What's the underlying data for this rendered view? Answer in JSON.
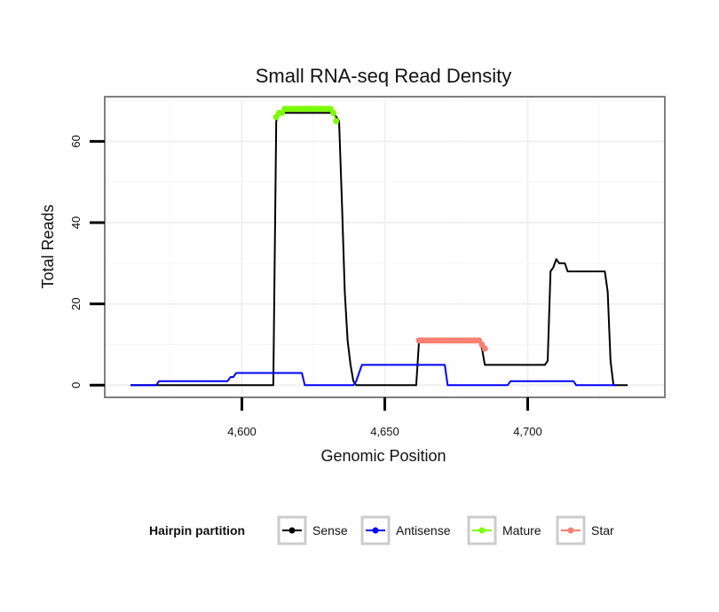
{
  "chart_data": {
    "type": "line",
    "title": "Small RNA-seq Read Density",
    "xlabel": "Genomic Position",
    "ylabel": "Total Reads",
    "xlim": [
      4552,
      4748
    ],
    "ylim": [
      -3,
      71
    ],
    "x_ticks": [
      4600,
      4650,
      4700
    ],
    "x_tick_labels": [
      "4,600",
      "4,650",
      "4,700"
    ],
    "y_ticks": [
      0,
      20,
      40,
      60
    ],
    "y_tick_labels": [
      "0",
      "20",
      "40",
      "60"
    ],
    "grid": true,
    "legend": {
      "title": "Hairpin partition",
      "position": "bottom",
      "entries": [
        {
          "label": "Sense",
          "color": "#000000"
        },
        {
          "label": "Antisense",
          "color": "#0000ff"
        },
        {
          "label": "Mature",
          "color": "#7cfc00"
        },
        {
          "label": "Star",
          "color": "#fa8072"
        }
      ]
    },
    "series": [
      {
        "name": "Sense",
        "color": "#000000",
        "style": "line",
        "x": [
          4561,
          4611,
          4612,
          4613,
          4632,
          4634,
          4635,
          4636,
          4637,
          4638,
          4639,
          4640,
          4661,
          4662,
          4683,
          4684,
          4685,
          4706,
          4707,
          4708,
          4709,
          4710,
          4711,
          4712,
          4713,
          4714,
          4727,
          4728,
          4729,
          4730,
          4735
        ],
        "y": [
          0,
          0,
          65,
          67,
          67,
          65,
          45,
          23,
          11,
          5,
          1,
          0,
          0,
          11,
          11,
          9,
          5,
          5,
          6,
          28,
          29,
          31,
          30,
          30,
          30,
          28,
          28,
          23,
          6,
          0,
          0
        ]
      },
      {
        "name": "Antisense",
        "color": "#0000ff",
        "style": "line",
        "x": [
          4561,
          4570,
          4571,
          4595,
          4596,
          4597,
          4598,
          4621,
          4622,
          4638,
          4639,
          4640,
          4641,
          4642,
          4671,
          4672,
          4693,
          4694,
          4716,
          4717,
          4731
        ],
        "y": [
          0,
          0,
          1,
          1,
          2,
          2,
          3,
          3,
          0,
          0,
          0,
          1,
          3,
          5,
          5,
          0,
          0,
          1,
          1,
          0,
          0
        ]
      },
      {
        "name": "Mature",
        "color": "#7cfc00",
        "style": "points",
        "x": [
          4612,
          4613,
          4614,
          4615,
          4616,
          4617,
          4618,
          4619,
          4620,
          4621,
          4622,
          4623,
          4624,
          4625,
          4626,
          4627,
          4628,
          4629,
          4630,
          4631,
          4632,
          4633
        ],
        "y": [
          66,
          67,
          67,
          68,
          68,
          68,
          68,
          68,
          68,
          68,
          68,
          68,
          68,
          68,
          68,
          68,
          68,
          68,
          68,
          68,
          67,
          65
        ]
      },
      {
        "name": "Star",
        "color": "#fa8072",
        "style": "points",
        "x": [
          4662,
          4663,
          4664,
          4665,
          4666,
          4667,
          4668,
          4669,
          4670,
          4671,
          4672,
          4673,
          4674,
          4675,
          4676,
          4677,
          4678,
          4679,
          4680,
          4681,
          4682,
          4683,
          4684,
          4685
        ],
        "y": [
          11,
          11,
          11,
          11,
          11,
          11,
          11,
          11,
          11,
          11,
          11,
          11,
          11,
          11,
          11,
          11,
          11,
          11,
          11,
          11,
          11,
          11,
          10,
          9
        ]
      }
    ]
  }
}
